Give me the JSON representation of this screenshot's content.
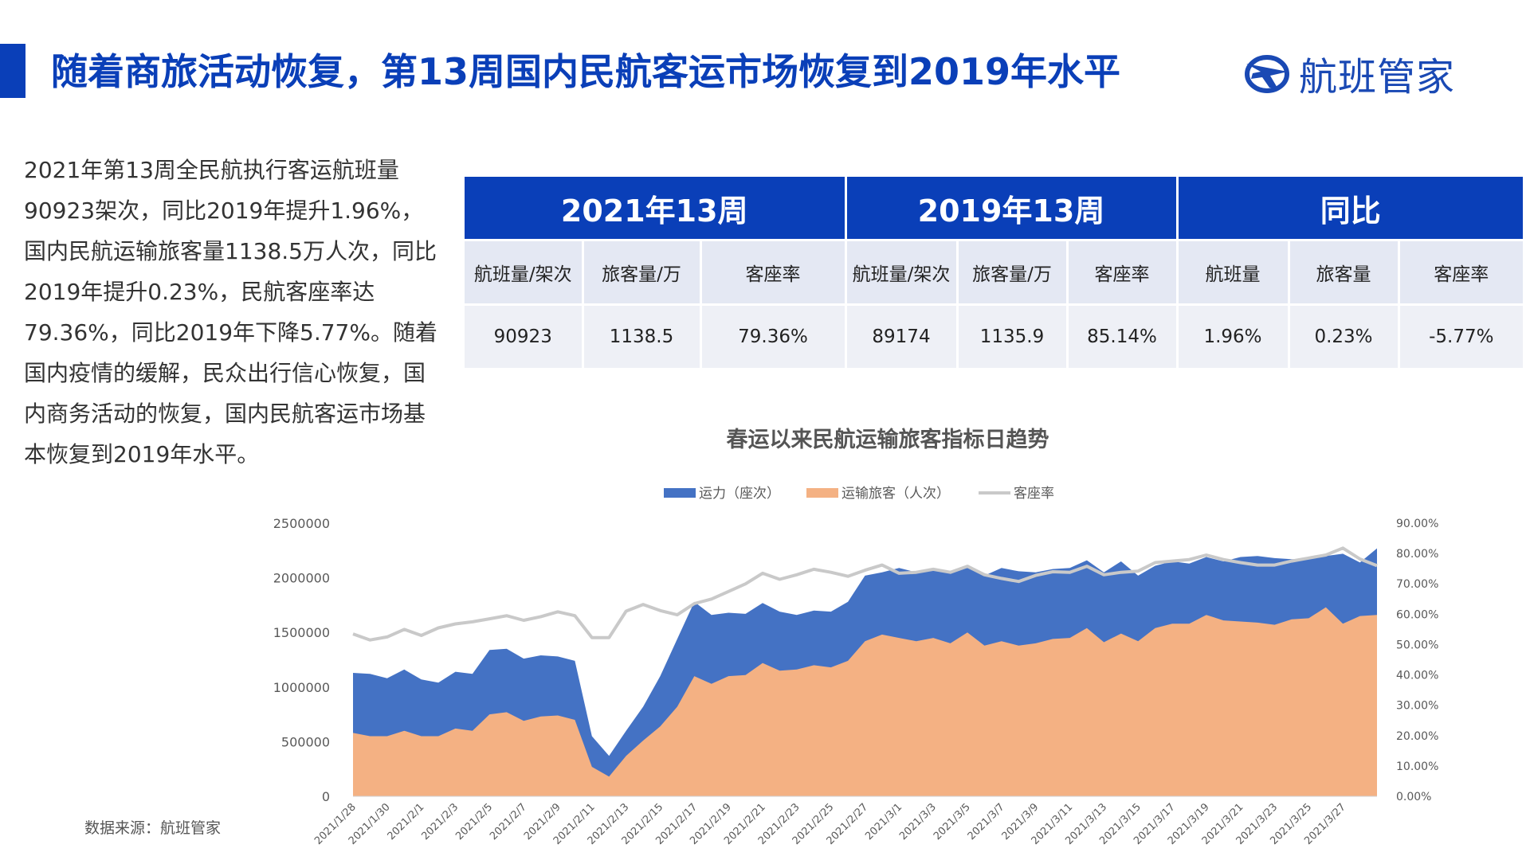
{
  "header": {
    "title": "随着商旅活动恢复，第13周国内民航客运市场恢复到2019年水平",
    "brand": "航班管家"
  },
  "summary": "2021年第13周全民航执行客运航班量90923架次，同比2019年提升1.96%，国内民航运输旅客量1138.5万人次，同比2019年提升0.23%，民航客座率达79.36%，同比2019年下降5.77%。随着国内疫情的缓解，民众出行信心恢复，国内商务活动的恢复，国内民航客运市场基本恢复到2019年水平。",
  "table": {
    "groups": [
      "2021年13周",
      "2019年13周",
      "同比"
    ],
    "subheaders": [
      "航班量/架次",
      "旅客量/万",
      "客座率",
      "航班量/架次",
      "旅客量/万",
      "客座率",
      "航班量",
      "旅客量",
      "客座率"
    ],
    "values": [
      "90923",
      "1138.5",
      "79.36%",
      "89174",
      "1135.9",
      "85.14%",
      "1.96%",
      "0.23%",
      "-5.77%"
    ]
  },
  "colors": {
    "accent": "#0a3fb8",
    "capacity": "#4472c4",
    "passengers": "#f4b183",
    "load_factor": "#c9c9c9"
  },
  "source": "数据来源：航班管家",
  "chart_data": {
    "type": "area",
    "title": "春运以来民航运输旅客指标日趋势",
    "legend": [
      "运力（座次）",
      "运输旅客（人次）",
      "客座率"
    ],
    "legend_position": "top-center",
    "categories": [
      "2021/1/28",
      "2021/1/29",
      "2021/1/30",
      "2021/1/31",
      "2021/2/1",
      "2021/2/2",
      "2021/2/3",
      "2021/2/4",
      "2021/2/5",
      "2021/2/6",
      "2021/2/7",
      "2021/2/8",
      "2021/2/9",
      "2021/2/10",
      "2021/2/11",
      "2021/2/12",
      "2021/2/13",
      "2021/2/14",
      "2021/2/15",
      "2021/2/16",
      "2021/2/17",
      "2021/2/18",
      "2021/2/19",
      "2021/2/20",
      "2021/2/21",
      "2021/2/22",
      "2021/2/23",
      "2021/2/24",
      "2021/2/25",
      "2021/2/26",
      "2021/2/27",
      "2021/2/28",
      "2021/3/1",
      "2021/3/2",
      "2021/3/3",
      "2021/3/4",
      "2021/3/5",
      "2021/3/6",
      "2021/3/7",
      "2021/3/8",
      "2021/3/9",
      "2021/3/10",
      "2021/3/11",
      "2021/3/12",
      "2021/3/13",
      "2021/3/14",
      "2021/3/15",
      "2021/3/16",
      "2021/3/17",
      "2021/3/18",
      "2021/3/19",
      "2021/3/20",
      "2021/3/21",
      "2021/3/22",
      "2021/3/23",
      "2021/3/24",
      "2021/3/25",
      "2021/3/26",
      "2021/3/27",
      "2021/3/28",
      "2021/3/29"
    ],
    "x_tick_labels": [
      "2021/1/28",
      "2021/1/30",
      "2021/2/1",
      "2021/2/3",
      "2021/2/5",
      "2021/2/7",
      "2021/2/9",
      "2021/2/11",
      "2021/2/13",
      "2021/2/15",
      "2021/2/17",
      "2021/2/19",
      "2021/2/21",
      "2021/2/23",
      "2021/2/25",
      "2021/2/27",
      "2021/3/1",
      "2021/3/3",
      "2021/3/5",
      "2021/3/7",
      "2021/3/9",
      "2021/3/11",
      "2021/3/13",
      "2021/3/15",
      "2021/3/17",
      "2021/3/19",
      "2021/3/21",
      "2021/3/23",
      "2021/3/25",
      "2021/3/27"
    ],
    "series": [
      {
        "name": "运力（座次）",
        "axis": "left",
        "values": [
          1130000,
          1120000,
          1080000,
          1160000,
          1070000,
          1040000,
          1140000,
          1120000,
          1340000,
          1350000,
          1260000,
          1290000,
          1280000,
          1240000,
          550000,
          370000,
          600000,
          820000,
          1100000,
          1440000,
          1780000,
          1660000,
          1680000,
          1670000,
          1770000,
          1690000,
          1660000,
          1700000,
          1690000,
          1780000,
          2020000,
          2050000,
          2090000,
          2050000,
          2080000,
          2060000,
          2090000,
          2020000,
          2090000,
          2060000,
          2050000,
          2080000,
          2090000,
          2160000,
          2050000,
          2150000,
          2020000,
          2110000,
          2150000,
          2130000,
          2190000,
          2150000,
          2190000,
          2200000,
          2180000,
          2170000,
          2170000,
          2200000,
          2220000,
          2140000,
          2270000
        ]
      },
      {
        "name": "运输旅客（人次）",
        "axis": "left",
        "values": [
          580000,
          550000,
          550000,
          600000,
          550000,
          550000,
          620000,
          600000,
          750000,
          770000,
          690000,
          730000,
          740000,
          700000,
          270000,
          180000,
          370000,
          510000,
          640000,
          820000,
          1100000,
          1030000,
          1100000,
          1110000,
          1220000,
          1150000,
          1160000,
          1200000,
          1180000,
          1240000,
          1420000,
          1480000,
          1450000,
          1420000,
          1450000,
          1400000,
          1500000,
          1380000,
          1420000,
          1380000,
          1400000,
          1440000,
          1450000,
          1540000,
          1410000,
          1490000,
          1420000,
          1540000,
          1580000,
          1580000,
          1660000,
          1610000,
          1600000,
          1590000,
          1570000,
          1620000,
          1630000,
          1730000,
          1580000,
          1650000,
          1660000
        ]
      },
      {
        "name": "客座率",
        "axis": "right",
        "values": [
          0.535,
          0.515,
          0.525,
          0.55,
          0.53,
          0.555,
          0.568,
          0.575,
          0.585,
          0.595,
          0.58,
          0.592,
          0.608,
          0.595,
          0.523,
          0.523,
          0.61,
          0.632,
          0.612,
          0.598,
          0.635,
          0.65,
          0.675,
          0.7,
          0.735,
          0.715,
          0.73,
          0.748,
          0.738,
          0.725,
          0.745,
          0.762,
          0.735,
          0.738,
          0.748,
          0.738,
          0.758,
          0.73,
          0.718,
          0.708,
          0.728,
          0.74,
          0.738,
          0.758,
          0.73,
          0.738,
          0.742,
          0.77,
          0.775,
          0.78,
          0.795,
          0.78,
          0.77,
          0.762,
          0.762,
          0.775,
          0.785,
          0.795,
          0.818,
          0.782,
          0.76
        ]
      }
    ],
    "y_left": {
      "min": 0,
      "max": 2500000,
      "ticks": [
        0,
        500000,
        1000000,
        1500000,
        2000000,
        2500000
      ]
    },
    "y_right": {
      "min": 0,
      "max": 0.9,
      "tick_labels": [
        "0.00%",
        "10.00%",
        "20.00%",
        "30.00%",
        "40.00%",
        "50.00%",
        "60.00%",
        "70.00%",
        "80.00%",
        "90.00%"
      ]
    },
    "grid": false
  }
}
